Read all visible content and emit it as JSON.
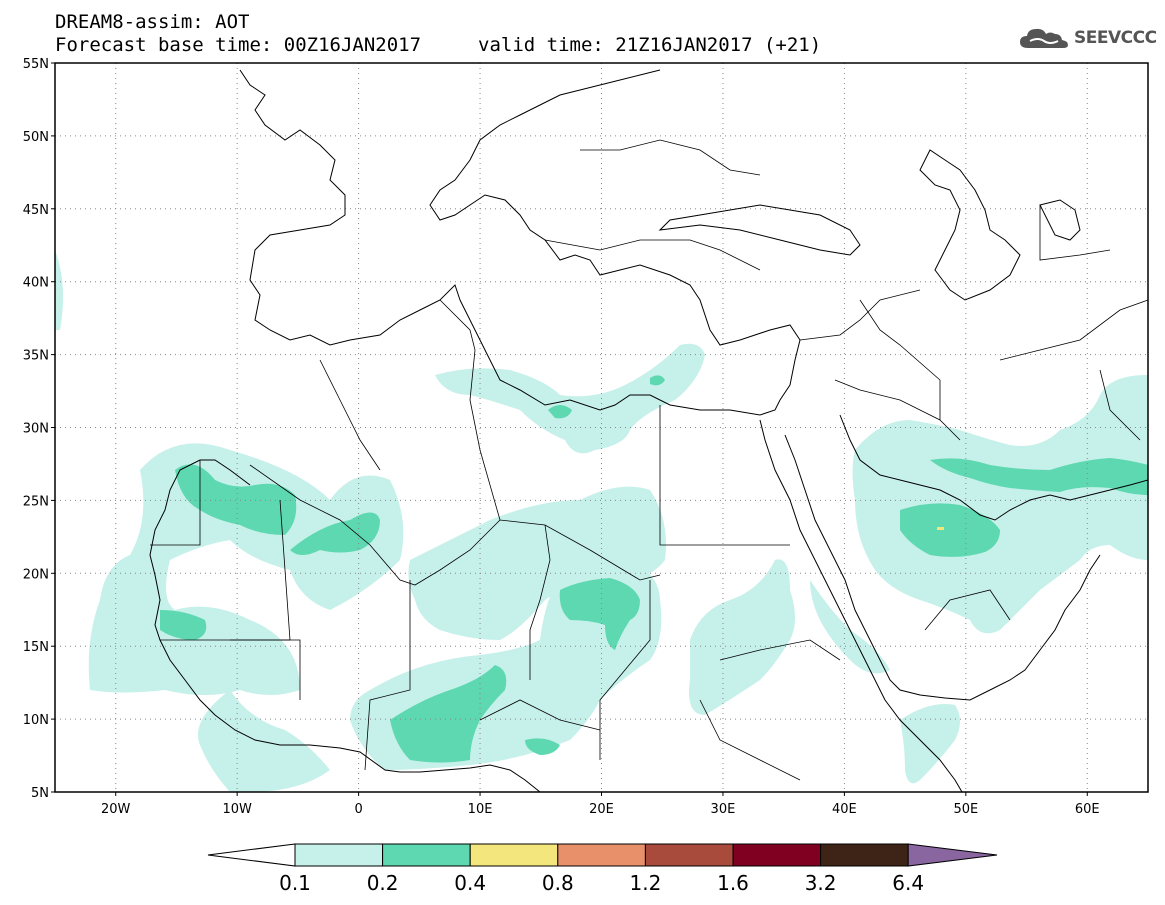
{
  "header": {
    "line1": "DREAM8-assim: AOT",
    "line2": "Forecast base time: 00Z16JAN2017",
    "valid": "valid time: 21Z16JAN2017 (+21)"
  },
  "logo": {
    "text": "SEEVCCC",
    "icon": "cloud-icon"
  },
  "map": {
    "lat_range": [
      5,
      55
    ],
    "lon_range": [
      -25,
      65
    ],
    "lat_ticks": [
      {
        "value": 55,
        "label": "55N"
      },
      {
        "value": 50,
        "label": "50N"
      },
      {
        "value": 45,
        "label": "45N"
      },
      {
        "value": 40,
        "label": "40N"
      },
      {
        "value": 35,
        "label": "35N"
      },
      {
        "value": 30,
        "label": "30N"
      },
      {
        "value": 25,
        "label": "25N"
      },
      {
        "value": 20,
        "label": "20N"
      },
      {
        "value": 15,
        "label": "15N"
      },
      {
        "value": 10,
        "label": "10N"
      },
      {
        "value": 5,
        "label": "5N"
      }
    ],
    "lon_ticks": [
      {
        "value": -20,
        "label": "20W"
      },
      {
        "value": -10,
        "label": "10W"
      },
      {
        "value": 0,
        "label": "0"
      },
      {
        "value": 10,
        "label": "10E"
      },
      {
        "value": 20,
        "label": "20E"
      },
      {
        "value": 30,
        "label": "30E"
      },
      {
        "value": 40,
        "label": "40E"
      },
      {
        "value": 50,
        "label": "50E"
      },
      {
        "value": 60,
        "label": "60E"
      }
    ],
    "grid": "dotted"
  },
  "colorbar": {
    "labels": [
      "0.1",
      "0.2",
      "0.4",
      "0.8",
      "1.2",
      "1.6",
      "3.2",
      "6.4"
    ],
    "colors": [
      "#ffffff",
      "#c6f0ea",
      "#5ed8b0",
      "#f3e67c",
      "#e8906a",
      "#a84a3c",
      "#800022",
      "#3d2416",
      "#8a66a0"
    ]
  }
}
